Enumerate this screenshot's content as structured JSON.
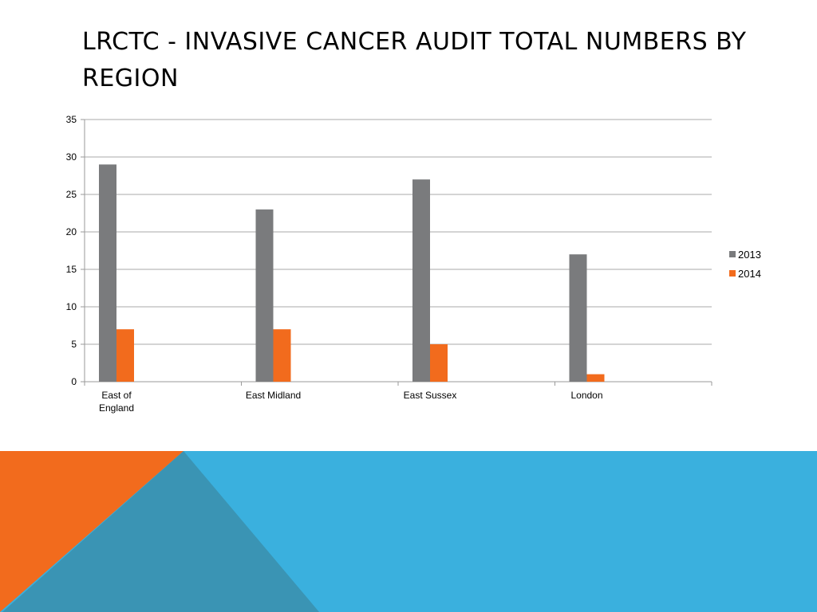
{
  "slide": {
    "title": "LRCTC - INVASIVE CANCER AUDIT TOTAL NUMBERS BY REGION"
  },
  "chart_data": {
    "type": "bar",
    "categories": [
      [
        "East of",
        "England"
      ],
      [
        "East Midland"
      ],
      [
        "East Sussex"
      ],
      [
        "London"
      ]
    ],
    "series": [
      {
        "name": "2013",
        "color": "#7a7b7d",
        "values": [
          29,
          23,
          27,
          17
        ]
      },
      {
        "name": "2014",
        "color": "#f26b1d",
        "values": [
          7,
          7,
          5,
          1
        ]
      }
    ],
    "ylim": [
      0,
      35
    ],
    "yticks": [
      0,
      5,
      10,
      15,
      20,
      25,
      30,
      35
    ],
    "grid": true,
    "legend": "right"
  },
  "decor": {
    "blue": "#3ab0de",
    "orange": "#f26b1d",
    "dark_blue": "#3a94b4"
  }
}
